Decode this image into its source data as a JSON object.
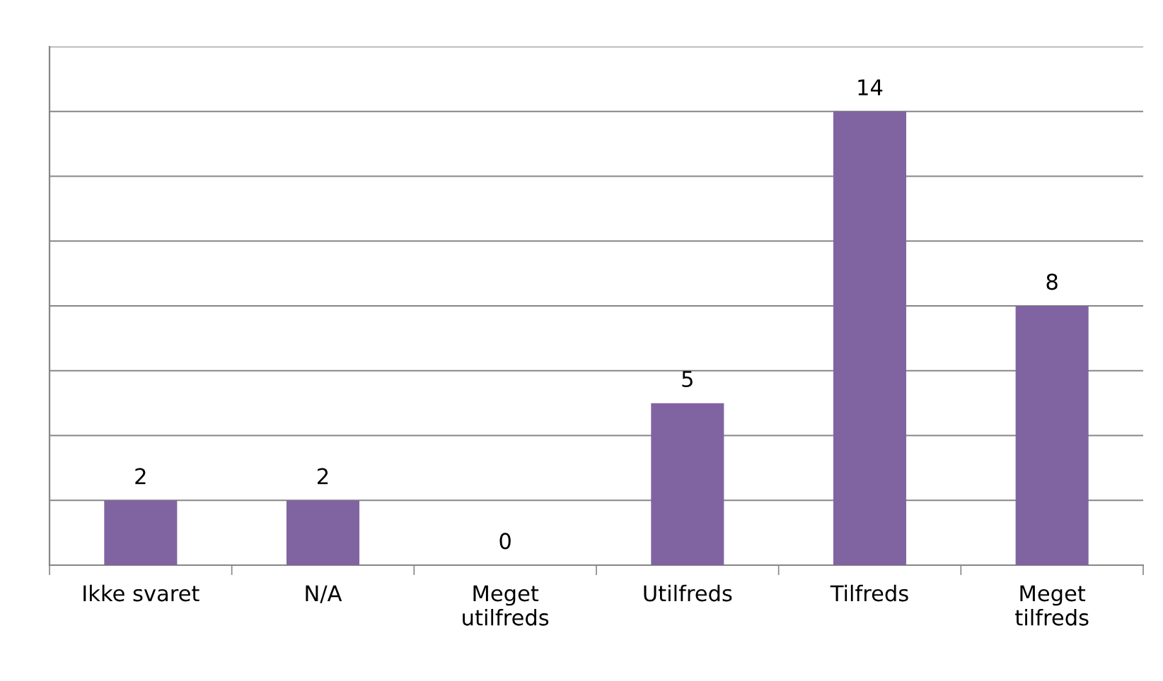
{
  "chart_data": {
    "type": "bar",
    "categories": [
      "Ikke svaret",
      "N/A",
      "Meget\nutilfreds",
      "Utilfreds",
      "Tilfreds",
      "Meget\ntilfreds"
    ],
    "values": [
      2,
      2,
      0,
      5,
      14,
      8
    ],
    "color": "#8064a2",
    "data_labels": true,
    "grid": "y",
    "tick_labels": "x",
    "ylim": [
      0,
      16
    ],
    "yticks": [
      {
        "value": 0,
        "label": null
      },
      {
        "value": 2,
        "label": null
      },
      {
        "value": 4,
        "label": null
      },
      {
        "value": 6,
        "label": null
      },
      {
        "value": 8,
        "label": null
      },
      {
        "value": 10,
        "label": null
      },
      {
        "value": 12,
        "label": null
      },
      {
        "value": 14,
        "label": null
      },
      {
        "value": 16,
        "label": null
      }
    ]
  }
}
